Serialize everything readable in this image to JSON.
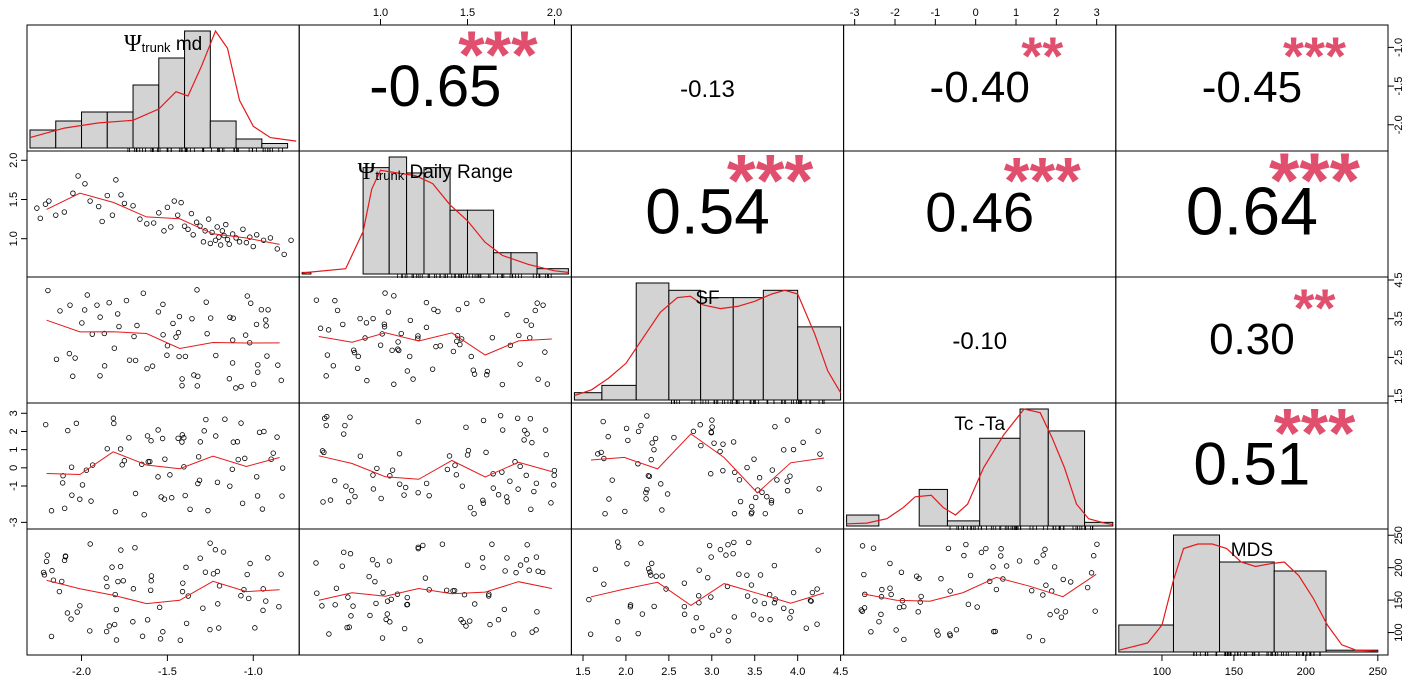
{
  "chart_data": {
    "type": "scatter",
    "variables": [
      {
        "name": "Ψtrunk md",
        "label_main": "Ψ",
        "label_sub": "trunk",
        "label_rest": " md",
        "min": -2.3,
        "max": -0.75,
        "ticks": [
          -2.0,
          -1.5,
          -1.0
        ],
        "tick_labels": [
          "-2.0",
          "-1.5",
          "-1.0"
        ],
        "tick_side": "bottom",
        "hist": {
          "edges": [
            -2.3,
            -2.15,
            -2.0,
            -1.85,
            -1.7,
            -1.55,
            -1.4,
            -1.25,
            -1.1,
            -0.95,
            -0.8,
            -0.75
          ],
          "counts": [
            2,
            3,
            4,
            4,
            7,
            10,
            13,
            3,
            1,
            0.5,
            0
          ]
        },
        "density": [
          [
            -2.3,
            1.2
          ],
          [
            -2.1,
            2.3
          ],
          [
            -1.9,
            2.9
          ],
          [
            -1.7,
            3.2
          ],
          [
            -1.55,
            4.5
          ],
          [
            -1.45,
            6.5
          ],
          [
            -1.38,
            6.0
          ],
          [
            -1.3,
            9.5
          ],
          [
            -1.22,
            13.5
          ],
          [
            -1.15,
            11.5
          ],
          [
            -1.08,
            5.5
          ],
          [
            -1.0,
            2.5
          ],
          [
            -0.9,
            1.2
          ],
          [
            -0.75,
            0.8
          ]
        ]
      },
      {
        "name": "Ψtrunk Daily Range",
        "label_main": "Ψ",
        "label_sub": "trunk",
        "label_rest": " Daily Range",
        "min": 0.55,
        "max": 2.08,
        "ticks": [
          1.0,
          1.5,
          2.0
        ],
        "tick_labels": [
          "1.0",
          "1.5",
          "2.0"
        ],
        "tick_side": "top",
        "hist": {
          "edges": [
            0.55,
            0.6,
            0.9,
            1.05,
            1.15,
            1.25,
            1.4,
            1.5,
            1.65,
            1.75,
            1.9,
            2.08
          ],
          "counts": [
            0.3,
            0,
            20,
            22,
            19,
            20,
            12,
            12,
            4,
            4,
            1
          ]
        },
        "density": [
          [
            0.55,
            0.2
          ],
          [
            0.8,
            1.0
          ],
          [
            0.9,
            8.0
          ],
          [
            0.95,
            16.0
          ],
          [
            1.0,
            19.5
          ],
          [
            1.1,
            19.0
          ],
          [
            1.2,
            18.5
          ],
          [
            1.3,
            17.0
          ],
          [
            1.4,
            13.0
          ],
          [
            1.5,
            10.0
          ],
          [
            1.6,
            6.0
          ],
          [
            1.7,
            3.5
          ],
          [
            1.85,
            1.8
          ],
          [
            2.0,
            0.6
          ],
          [
            2.08,
            0.3
          ]
        ]
      },
      {
        "name": "SF",
        "label_main": "SF",
        "label_sub": "",
        "label_rest": "",
        "min": 1.4,
        "max": 4.5,
        "ticks": [
          1.5,
          2.0,
          2.5,
          3.0,
          3.5,
          4.0,
          4.5
        ],
        "tick_labels": [
          "1.5",
          "2.0",
          "2.5",
          "3.0",
          "3.5",
          "4.0",
          "4.5"
        ],
        "tick_side": "bottom",
        "hist": {
          "edges": [
            1.4,
            1.72,
            2.12,
            2.5,
            2.87,
            3.25,
            3.6,
            4.0,
            4.5
          ],
          "counts": [
            1,
            2,
            16,
            15,
            14,
            14,
            15,
            10
          ]
        },
        "density": [
          [
            1.4,
            0.6
          ],
          [
            1.6,
            1.4
          ],
          [
            1.8,
            3.0
          ],
          [
            2.0,
            5.0
          ],
          [
            2.2,
            8.5
          ],
          [
            2.4,
            12.0
          ],
          [
            2.6,
            14.0
          ],
          [
            2.75,
            14.2
          ],
          [
            2.9,
            13.0
          ],
          [
            3.1,
            12.5
          ],
          [
            3.3,
            12.8
          ],
          [
            3.5,
            13.5
          ],
          [
            3.7,
            14.5
          ],
          [
            3.85,
            15.0
          ],
          [
            4.0,
            14.5
          ],
          [
            4.2,
            9.0
          ],
          [
            4.35,
            4.0
          ],
          [
            4.5,
            1.0
          ]
        ]
      },
      {
        "name": "Tc -Ta",
        "label_main": "Tc -Ta",
        "label_sub": "",
        "label_rest": "",
        "min": -3.2,
        "max": 3.4,
        "ticks": [
          -3,
          -2,
          -1,
          0,
          1,
          2,
          3
        ],
        "tick_labels": [
          "-3",
          "-2",
          "-1",
          "0",
          "1",
          "2",
          "3"
        ],
        "tick_side": "top",
        "hist": {
          "edges": [
            -3.2,
            -2.4,
            -1.4,
            -0.7,
            0.1,
            1.1,
            1.8,
            2.7,
            3.4
          ],
          "counts": [
            1.5,
            0,
            5,
            0.7,
            12,
            16,
            13,
            0.5
          ]
        },
        "density": [
          [
            -3.2,
            0.3
          ],
          [
            -2.7,
            0.4
          ],
          [
            -2.2,
            1.0
          ],
          [
            -1.8,
            2.5
          ],
          [
            -1.5,
            4.0
          ],
          [
            -1.1,
            4.2
          ],
          [
            -0.8,
            2.5
          ],
          [
            -0.5,
            1.5
          ],
          [
            -0.2,
            3.0
          ],
          [
            0.2,
            8.0
          ],
          [
            0.7,
            12.5
          ],
          [
            1.2,
            16.0
          ],
          [
            1.6,
            15.5
          ],
          [
            1.9,
            12.0
          ],
          [
            2.2,
            8.0
          ],
          [
            2.5,
            3.0
          ],
          [
            2.8,
            1.0
          ],
          [
            3.2,
            0.4
          ],
          [
            3.4,
            0.2
          ]
        ]
      },
      {
        "name": "MDS",
        "label_main": "MDS",
        "label_sub": "",
        "label_rest": "",
        "min": 70,
        "max": 255,
        "ticks": [
          100,
          150,
          200,
          250
        ],
        "tick_labels": [
          "100",
          "150",
          "200",
          "250"
        ],
        "tick_side": "bottom",
        "hist": {
          "edges": [
            70,
            108,
            140,
            178,
            214,
            250
          ],
          "counts": [
            3,
            13,
            10,
            9,
            0.2
          ]
        },
        "density": [
          [
            70,
            0.2
          ],
          [
            90,
            1.0
          ],
          [
            100,
            3.0
          ],
          [
            108,
            8.0
          ],
          [
            115,
            11.5
          ],
          [
            125,
            12.0
          ],
          [
            135,
            12.0
          ],
          [
            145,
            11.5
          ],
          [
            155,
            10.0
          ],
          [
            165,
            9.5
          ],
          [
            175,
            9.8
          ],
          [
            185,
            10.0
          ],
          [
            195,
            8.5
          ],
          [
            205,
            6.0
          ],
          [
            215,
            3.0
          ],
          [
            225,
            0.8
          ],
          [
            235,
            0.2
          ],
          [
            250,
            0.1
          ]
        ]
      }
    ],
    "right_axes": [
      {
        "row": 0,
        "min": -2.3,
        "max": -0.75,
        "ticks": [
          -1.0,
          -1.5,
          -2.0
        ],
        "tick_labels": [
          "-1.0",
          "-1.5",
          "-2.0"
        ]
      },
      {
        "row": 2,
        "min": 1.4,
        "max": 4.5,
        "ticks": [
          1.5,
          2.5,
          3.5,
          4.5
        ],
        "tick_labels": [
          "1.5",
          "2.5",
          "3.5",
          "4.5"
        ]
      },
      {
        "row": 4,
        "min": 70,
        "max": 255,
        "ticks": [
          100,
          150,
          200,
          250
        ],
        "tick_labels": [
          "100",
          "150",
          "200",
          "250"
        ]
      }
    ],
    "left_axes": [
      {
        "row": 1,
        "min": 0.55,
        "max": 2.08,
        "ticks": [
          1.0,
          1.5,
          2.0
        ],
        "tick_labels": [
          "1.0",
          "1.5",
          "2.0"
        ]
      },
      {
        "row": 3,
        "min": -3.2,
        "max": 3.4,
        "ticks": [
          -3,
          -1,
          0,
          1,
          2,
          3
        ],
        "tick_labels": [
          "-3",
          "-1",
          "0",
          "1",
          "2",
          "3"
        ]
      }
    ],
    "correlations": [
      {
        "row": 0,
        "col": 1,
        "value": "-0.65",
        "stars": "***",
        "size": 58
      },
      {
        "row": 0,
        "col": 2,
        "value": "-0.13",
        "stars": "",
        "size": 24
      },
      {
        "row": 0,
        "col": 3,
        "value": "-0.40",
        "stars": "**",
        "size": 44
      },
      {
        "row": 0,
        "col": 4,
        "value": "-0.45",
        "stars": "***",
        "size": 44
      },
      {
        "row": 1,
        "col": 2,
        "value": "0.54",
        "stars": "***",
        "size": 64
      },
      {
        "row": 1,
        "col": 3,
        "value": "0.46",
        "stars": "***",
        "size": 56
      },
      {
        "row": 1,
        "col": 4,
        "value": "0.64",
        "stars": "***",
        "size": 68
      },
      {
        "row": 2,
        "col": 3,
        "value": "-0.10",
        "stars": "",
        "size": 24
      },
      {
        "row": 2,
        "col": 4,
        "value": "0.30",
        "stars": "**",
        "size": 44
      },
      {
        "row": 3,
        "col": 4,
        "value": "0.51",
        "stars": "***",
        "size": 60
      }
    ],
    "scatter_points": [
      [
        -2.26,
        1.39
      ],
      [
        -2.24,
        1.26
      ],
      [
        -2.21,
        1.44
      ],
      [
        -2.19,
        1.48
      ],
      [
        -2.15,
        1.3
      ],
      [
        -2.1,
        1.34
      ],
      [
        -2.05,
        1.58
      ],
      [
        -2.02,
        1.8
      ],
      [
        -1.98,
        1.7
      ],
      [
        -1.95,
        1.48
      ],
      [
        -1.9,
        1.41
      ],
      [
        -1.88,
        1.22
      ],
      [
        -1.85,
        1.55
      ],
      [
        -1.82,
        1.3
      ],
      [
        -1.8,
        1.75
      ],
      [
        -1.77,
        1.56
      ],
      [
        -1.75,
        1.45
      ],
      [
        -1.7,
        1.42
      ],
      [
        -1.66,
        1.25
      ],
      [
        -1.62,
        1.19
      ],
      [
        -1.58,
        1.2
      ],
      [
        -1.55,
        1.33
      ],
      [
        -1.52,
        1.1
      ],
      [
        -1.5,
        1.4
      ],
      [
        -1.48,
        1.15
      ],
      [
        -1.46,
        1.48
      ],
      [
        -1.44,
        1.3
      ],
      [
        -1.42,
        1.46
      ],
      [
        -1.4,
        1.16
      ],
      [
        -1.38,
        1.12
      ],
      [
        -1.36,
        1.32
      ],
      [
        -1.35,
        1.05
      ],
      [
        -1.33,
        1.21
      ],
      [
        -1.31,
        1.16
      ],
      [
        -1.29,
        0.96
      ],
      [
        -1.28,
        1.1
      ],
      [
        -1.26,
        1.25
      ],
      [
        -1.25,
        0.94
      ],
      [
        -1.24,
        1.08
      ],
      [
        -1.22,
        0.98
      ],
      [
        -1.21,
        1.15
      ],
      [
        -1.2,
        1.02
      ],
      [
        -1.19,
        0.92
      ],
      [
        -1.18,
        1.1
      ],
      [
        -1.17,
        1.04
      ],
      [
        -1.16,
        1.18
      ],
      [
        -1.15,
        0.99
      ],
      [
        -1.14,
        0.93
      ],
      [
        -1.12,
        1.06
      ],
      [
        -1.1,
        1.01
      ],
      [
        -1.08,
        0.96
      ],
      [
        -1.06,
        1.12
      ],
      [
        -1.04,
        0.95
      ],
      [
        -1.02,
        1.02
      ],
      [
        -1.0,
        0.9
      ],
      [
        -0.98,
        1.05
      ],
      [
        -0.94,
        0.98
      ],
      [
        -0.9,
        1.01
      ],
      [
        -0.86,
        0.87
      ],
      [
        -0.82,
        0.8
      ],
      [
        -0.78,
        0.98
      ]
    ]
  }
}
